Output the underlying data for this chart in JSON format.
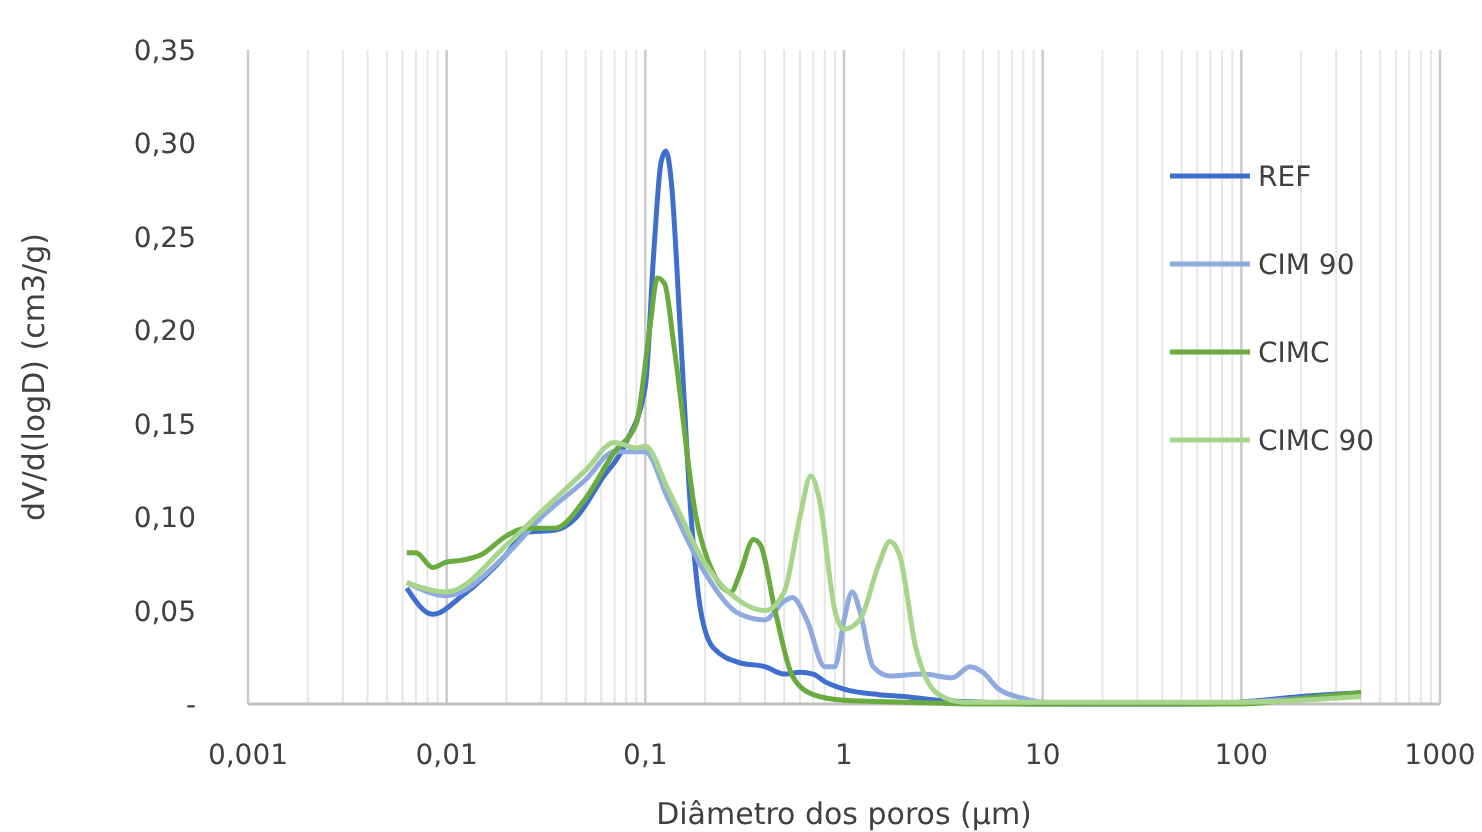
{
  "chart_data": {
    "type": "line",
    "xlabel": "Diâmetro dos poros (µm)",
    "ylabel": "dV/d(logD) (cm3/g)",
    "log": "x",
    "grid": "x",
    "legend": "top right",
    "line_style": "solid",
    "marker": "none",
    "xlim": [
      0.001,
      1000
    ],
    "xticks": [
      {
        "value": 0.001,
        "label": "0,001"
      },
      {
        "value": 0.01,
        "label": "0,01"
      },
      {
        "value": 0.1,
        "label": "0,1"
      },
      1,
      10,
      100,
      1000
    ],
    "ylim": [
      0,
      0.35
    ],
    "yticks": [
      {
        "value": 0,
        "label": "-"
      },
      {
        "value": 0.05,
        "label": "0,05"
      },
      {
        "value": 0.1,
        "label": "0,10"
      },
      {
        "value": 0.15,
        "label": "0,15"
      },
      {
        "value": 0.2,
        "label": "0,20"
      },
      {
        "value": 0.25,
        "label": "0,25"
      },
      {
        "value": 0.3,
        "label": "0,30"
      },
      {
        "value": 0.35,
        "label": "0,35"
      }
    ],
    "series": [
      {
        "name": "REF",
        "color": "#3f6fcc",
        "x": [
          0.0063,
          0.0085,
          0.012,
          0.02,
          0.025,
          0.035,
          0.045,
          0.06,
          0.08,
          0.1,
          0.11,
          0.12,
          0.127,
          0.135,
          0.15,
          0.17,
          0.19,
          0.22,
          0.3,
          0.4,
          0.5,
          0.6,
          0.7,
          0.8,
          1,
          1.5,
          2,
          3,
          5,
          10,
          50,
          100,
          200,
          400
        ],
        "values": [
          0.062,
          0.048,
          0.058,
          0.08,
          0.092,
          0.093,
          0.1,
          0.12,
          0.14,
          0.17,
          0.24,
          0.29,
          0.296,
          0.28,
          0.2,
          0.1,
          0.05,
          0.03,
          0.022,
          0.02,
          0.016,
          0.017,
          0.016,
          0.012,
          0.008,
          0.005,
          0.004,
          0.002,
          0.001,
          0,
          0,
          0.001,
          0.004,
          0.006
        ]
      },
      {
        "name": "CIM 90",
        "color": "#8eaadf",
        "x": [
          0.0063,
          0.01,
          0.02,
          0.03,
          0.05,
          0.07,
          0.09,
          0.1,
          0.13,
          0.2,
          0.3,
          0.4,
          0.5,
          0.55,
          0.65,
          0.8,
          0.9,
          1,
          1.1,
          1.2,
          1.4,
          1.7,
          2.5,
          3.5,
          4.3,
          5,
          6,
          8,
          10,
          20,
          100,
          200,
          400
        ],
        "values": [
          0.065,
          0.058,
          0.08,
          0.1,
          0.12,
          0.135,
          0.135,
          0.135,
          0.11,
          0.07,
          0.048,
          0.045,
          0.055,
          0.057,
          0.045,
          0.02,
          0.02,
          0.045,
          0.06,
          0.05,
          0.02,
          0.015,
          0.016,
          0.014,
          0.02,
          0.017,
          0.008,
          0.003,
          0.001,
          0,
          0.001,
          0.003,
          0.005
        ]
      },
      {
        "name": "CIMC",
        "color": "#6aab3f",
        "x": [
          0.0063,
          0.007,
          0.0085,
          0.01,
          0.012,
          0.015,
          0.02,
          0.025,
          0.035,
          0.05,
          0.07,
          0.09,
          0.105,
          0.115,
          0.125,
          0.14,
          0.18,
          0.22,
          0.27,
          0.3,
          0.35,
          0.38,
          0.45,
          0.55,
          0.7,
          1,
          2,
          5,
          100,
          200,
          400
        ],
        "values": [
          0.081,
          0.081,
          0.073,
          0.076,
          0.077,
          0.08,
          0.09,
          0.094,
          0.094,
          0.11,
          0.135,
          0.15,
          0.2,
          0.228,
          0.225,
          0.19,
          0.1,
          0.07,
          0.06,
          0.07,
          0.088,
          0.085,
          0.05,
          0.015,
          0.005,
          0.002,
          0.001,
          0,
          0,
          0.003,
          0.006
        ]
      },
      {
        "name": "CIMC 90",
        "color": "#a6d58b",
        "x": [
          0.0063,
          0.01,
          0.02,
          0.03,
          0.05,
          0.07,
          0.09,
          0.1,
          0.13,
          0.2,
          0.3,
          0.4,
          0.5,
          0.6,
          0.68,
          0.75,
          0.9,
          1,
          1.2,
          1.5,
          1.7,
          1.9,
          2.3,
          3,
          4,
          10,
          100,
          200,
          400
        ],
        "values": [
          0.065,
          0.06,
          0.085,
          0.103,
          0.125,
          0.14,
          0.137,
          0.138,
          0.115,
          0.075,
          0.055,
          0.05,
          0.06,
          0.1,
          0.122,
          0.11,
          0.05,
          0.04,
          0.045,
          0.075,
          0.087,
          0.08,
          0.03,
          0.005,
          0.001,
          0.001,
          0.001,
          0.002,
          0.004
        ]
      }
    ]
  }
}
